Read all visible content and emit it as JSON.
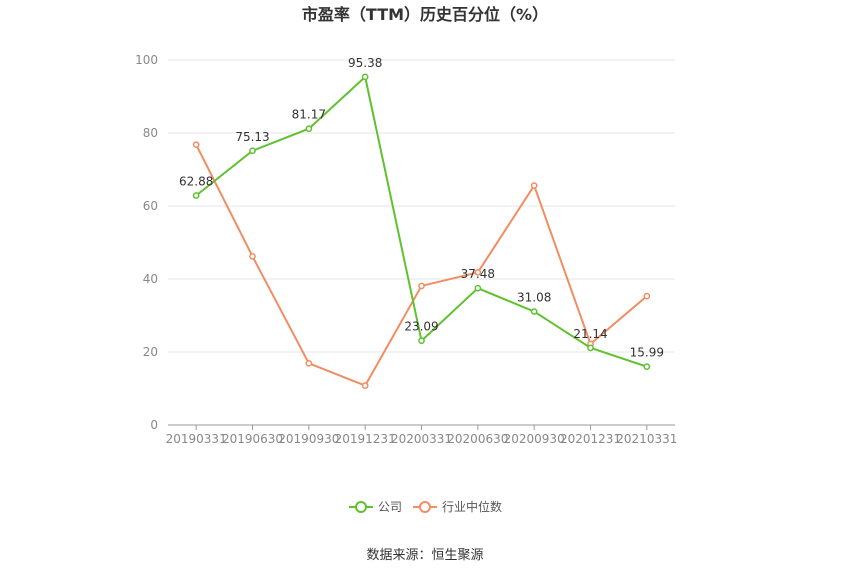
{
  "chart_data": {
    "type": "line",
    "title": "市盈率（TTM）历史百分位（%）",
    "categories": [
      "20190331",
      "20190630",
      "20190930",
      "20191231",
      "20200331",
      "20200630",
      "20200930",
      "20201231",
      "20210331"
    ],
    "ylim": [
      0,
      100
    ],
    "yticks": [
      0,
      20,
      40,
      60,
      80,
      100
    ],
    "grid": true,
    "legend_position": "bottom",
    "series": [
      {
        "name": "公司",
        "color": "#5ec22e",
        "values": [
          62.88,
          75.13,
          81.17,
          95.38,
          23.09,
          37.48,
          31.08,
          21.14,
          15.99
        ],
        "labels": [
          "62.88",
          "75.13",
          "81.17",
          "95.38",
          "23.09",
          "37.48",
          "31.08",
          "21.14",
          "15.99"
        ]
      },
      {
        "name": "行业中位数",
        "color": "#f28c62",
        "values": [
          76.8,
          46.2,
          16.9,
          10.8,
          38.1,
          41.8,
          65.6,
          22.2,
          35.3
        ]
      }
    ]
  },
  "source_text": "数据来源：恒生聚源"
}
